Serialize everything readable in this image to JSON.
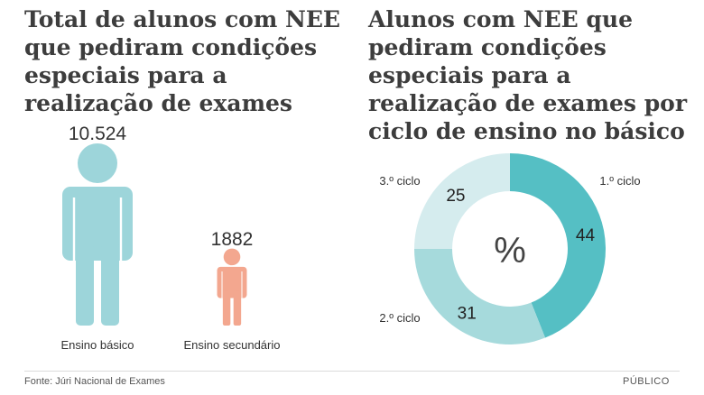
{
  "colors": {
    "figure_basico": "#9dd5da",
    "figure_secundario": "#f3a78f",
    "donut_1": "#55bfc4",
    "donut_2": "#a6dadc",
    "donut_3": "#d5ecee",
    "text": "#333333"
  },
  "chart_data": [
    {
      "type": "bar",
      "title": "Total de alunos com NEE que pediram condições especiais para a realização de exames",
      "categories": [
        "Ensino básico",
        "Ensino secundário"
      ],
      "values": [
        10524,
        1882
      ],
      "value_labels": [
        "10.524",
        "1882"
      ],
      "mark": "person-icon"
    },
    {
      "type": "pie",
      "title": "Alunos com NEE que pediram condições especiais para a realização de exames por ciclo de ensino no básico",
      "center_label": "%",
      "categories": [
        "1.º ciclo",
        "2.º ciclo",
        "3.º ciclo"
      ],
      "values": [
        44,
        31,
        25
      ],
      "value_labels": [
        "44",
        "31",
        "25"
      ]
    }
  ],
  "footer": {
    "source": "Fonte: Júri Nacional de Exames",
    "brand": "PÚBLICO"
  }
}
